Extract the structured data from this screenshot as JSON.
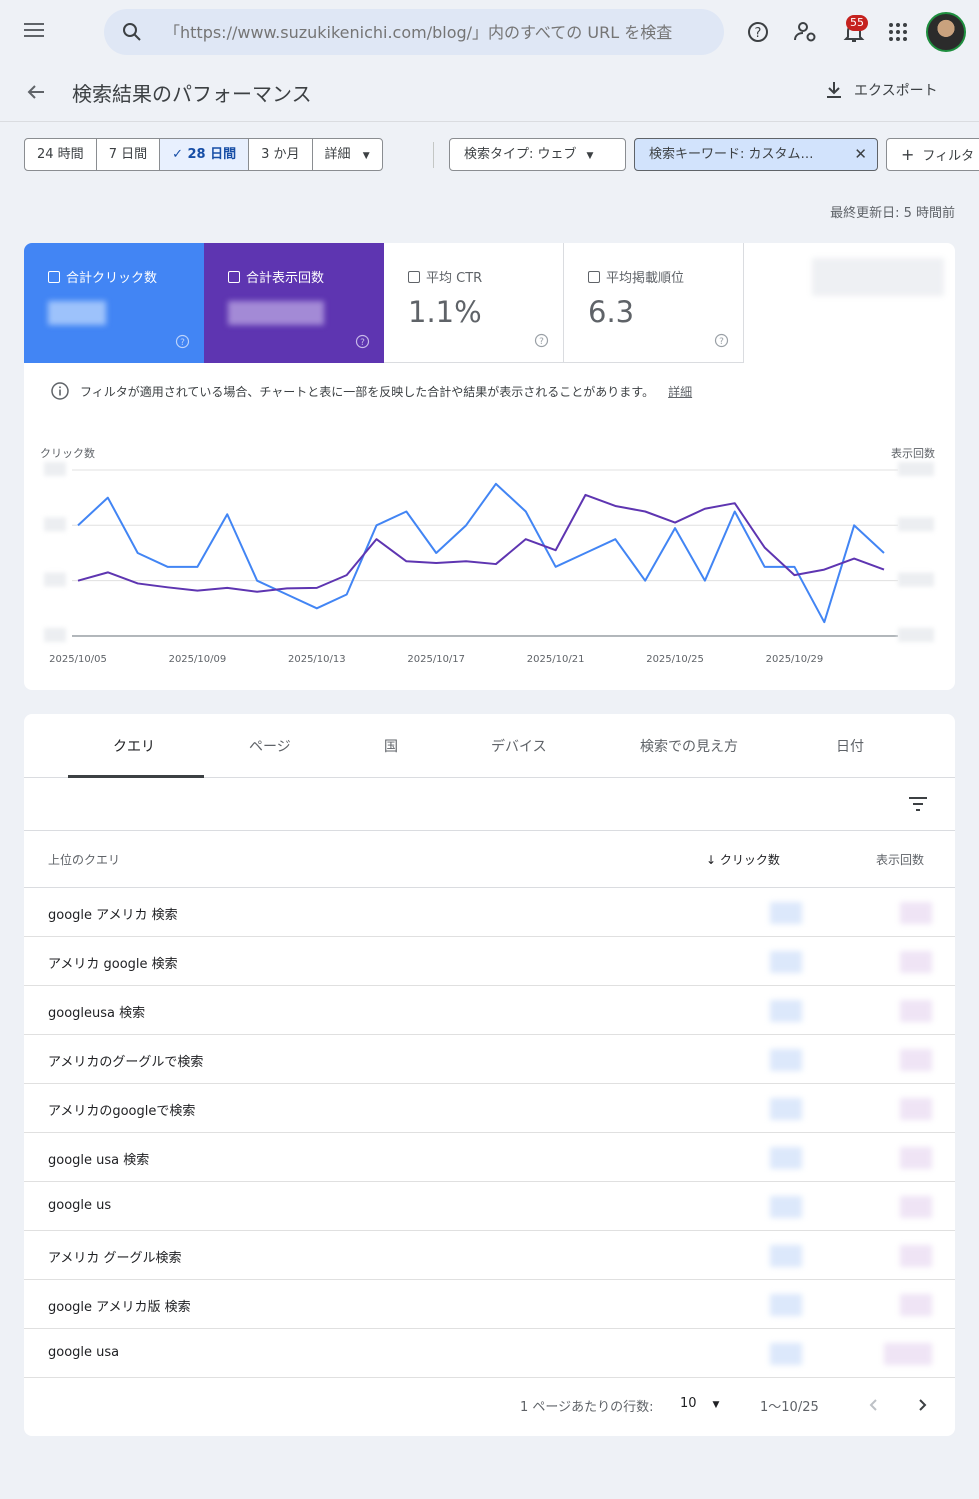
{
  "topbar": {
    "search_placeholder": "「https://www.suzukikenichi.com/blog/」内のすべての URL を検査",
    "notification_count": "55"
  },
  "header": {
    "title": "検索結果のパフォーマンス",
    "export_label": "エクスポート"
  },
  "date_ranges": [
    "24 時間",
    "7 日間",
    "28 日間",
    "3 か月",
    "詳細"
  ],
  "filters": {
    "search_type": "検索タイプ: ウェブ",
    "keyword": "検索キーワード: カスタム…",
    "add_filter": "フィルタ"
  },
  "updated": "最終更新日: 5 時間前",
  "metrics": {
    "clicks_label": "合計クリック数",
    "impressions_label": "合計表示回数",
    "ctr_label": "平均 CTR",
    "ctr_value": "1.1%",
    "position_label": "平均掲載順位",
    "position_value": "6.3",
    "clicks_color": "#4285f4",
    "impressions_color": "#5e35b1"
  },
  "notice": {
    "text": "フィルタが適用されている場合、チャートと表に一部を反映した合計や結果が表示されることがあります。",
    "link": "詳細"
  },
  "chart_data": {
    "type": "line",
    "ylabel_left": "クリック数",
    "ylabel_right": "表示回数",
    "x_ticks": [
      "2025/10/05",
      "2025/10/09",
      "2025/10/13",
      "2025/10/17",
      "2025/10/21",
      "2025/10/25",
      "2025/10/29"
    ],
    "x": [
      "2025/10/05",
      "2025/10/06",
      "2025/10/07",
      "2025/10/08",
      "2025/10/09",
      "2025/10/10",
      "2025/10/11",
      "2025/10/12",
      "2025/10/13",
      "2025/10/14",
      "2025/10/15",
      "2025/10/16",
      "2025/10/17",
      "2025/10/18",
      "2025/10/19",
      "2025/10/20",
      "2025/10/21",
      "2025/10/22",
      "2025/10/23",
      "2025/10/24",
      "2025/10/25",
      "2025/10/26",
      "2025/10/27",
      "2025/10/28",
      "2025/10/29",
      "2025/10/30",
      "2025/10/31",
      "2025/11/01"
    ],
    "grid": true,
    "series": [
      {
        "color": "#4285f4",
        "axis": "left",
        "values": [
          2.0,
          2.5,
          1.5,
          1.25,
          1.25,
          2.2,
          1.0,
          0.75,
          0.5,
          0.75,
          2.0,
          2.25,
          1.5,
          2.0,
          2.75,
          2.25,
          1.25,
          1.5,
          1.75,
          1.0,
          1.95,
          1.0,
          2.25,
          1.25,
          1.25,
          0.25,
          2.0,
          1.5
        ]
      },
      {
        "color": "#5e35b1",
        "axis": "right",
        "values": [
          1.0,
          1.15,
          0.95,
          0.88,
          0.82,
          0.87,
          0.8,
          0.86,
          0.87,
          1.1,
          1.75,
          1.35,
          1.32,
          1.35,
          1.3,
          1.75,
          1.55,
          2.55,
          2.35,
          2.25,
          2.05,
          2.3,
          2.4,
          1.6,
          1.1,
          1.2,
          1.4,
          1.2
        ]
      }
    ]
  },
  "tabs": [
    "クエリ",
    "ページ",
    "国",
    "デバイス",
    "検索での見え方",
    "日付"
  ],
  "table": {
    "col_query": "上位のクエリ",
    "col_clicks": "クリック数",
    "col_impressions": "表示回数",
    "rows": [
      "google アメリカ 検索",
      "アメリカ google 検索",
      "googleusa 検索",
      "アメリカのグーグルで検索",
      "アメリカのgoogleで検索",
      "google usa 検索",
      "google us",
      "アメリカ グーグル検索",
      "google アメリカ版 検索",
      "google usa"
    ]
  },
  "pager": {
    "rows_label": "1 ページあたりの行数:",
    "rows_value": "10",
    "range": "1〜10/25"
  }
}
